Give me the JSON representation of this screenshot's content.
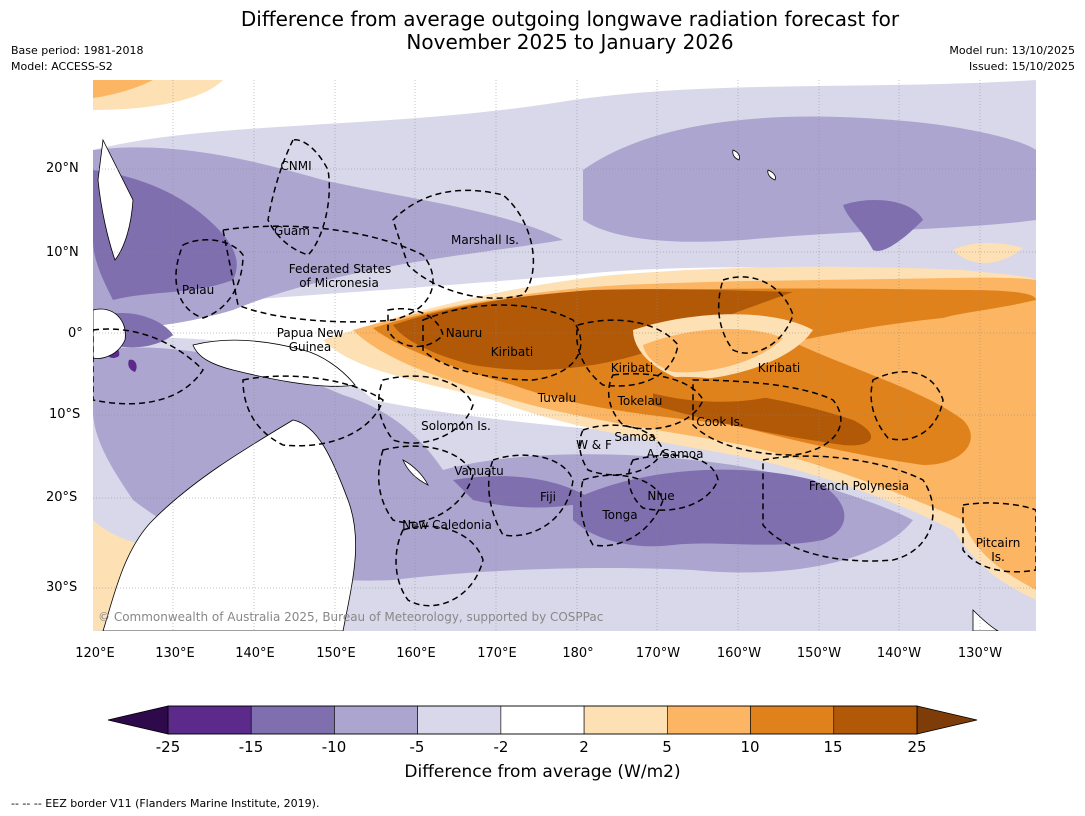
{
  "title": {
    "line1": "Difference from average outgoing longwave radiation forecast for",
    "line2": "November 2025 to January 2026"
  },
  "meta_left": {
    "base_period": "Base period: 1981-2018",
    "model": "Model: ACCESS-S2"
  },
  "meta_right": {
    "model_run": "Model run: 13/10/2025",
    "issued": "Issued: 15/10/2025"
  },
  "axes": {
    "lat_labels": [
      "20°N",
      "10°N",
      "0°",
      "10°S",
      "20°S",
      "30°S"
    ],
    "lon_labels": [
      "120°E",
      "130°E",
      "140°E",
      "150°E",
      "160°E",
      "170°E",
      "180°",
      "170°W",
      "160°W",
      "150°W",
      "140°W",
      "130°W"
    ]
  },
  "regions": [
    {
      "name": "CNMI"
    },
    {
      "name": "Guam"
    },
    {
      "name": "Marshall Is."
    },
    {
      "name": "Federated States",
      "name2": "of Micronesia"
    },
    {
      "name": "Palau"
    },
    {
      "name": "Papua New",
      "name2": "Guinea"
    },
    {
      "name": "Nauru"
    },
    {
      "name": "Kiribati"
    },
    {
      "name": "Kiribati"
    },
    {
      "name": "Kiribati"
    },
    {
      "name": "Tuvalu"
    },
    {
      "name": "Tokelau"
    },
    {
      "name": "Cook Is."
    },
    {
      "name": "Solomon Is."
    },
    {
      "name": "W & F"
    },
    {
      "name": "Samoa"
    },
    {
      "name": "A. Samoa"
    },
    {
      "name": "Vanuatu"
    },
    {
      "name": "Fiji"
    },
    {
      "name": "Niue"
    },
    {
      "name": "Tonga"
    },
    {
      "name": "New Caledonia"
    },
    {
      "name": "French Polynesia"
    },
    {
      "name": "Pitcairn",
      "name2": "Is."
    }
  ],
  "copyright": "© Commonwealth of Australia 2025, Bureau of Meteorology, supported by COSPPac",
  "colorbar": {
    "ticks": [
      "-25",
      "-15",
      "-10",
      "-5",
      "-2",
      "2",
      "5",
      "10",
      "15",
      "25"
    ],
    "colors": [
      "#5b2a8a",
      "#7f6fae",
      "#aca5cf",
      "#d9d8ea",
      "#ffffff",
      "#fde0b4",
      "#fbb563",
      "#e0821c",
      "#b25908"
    ],
    "under_color": "#2e0a4c",
    "over_color": "#7e3d08",
    "title": "Difference from average (W/m2)"
  },
  "footnote": "--  --  -- EEZ border V11 (Flanders Marine Institute, 2019)."
}
